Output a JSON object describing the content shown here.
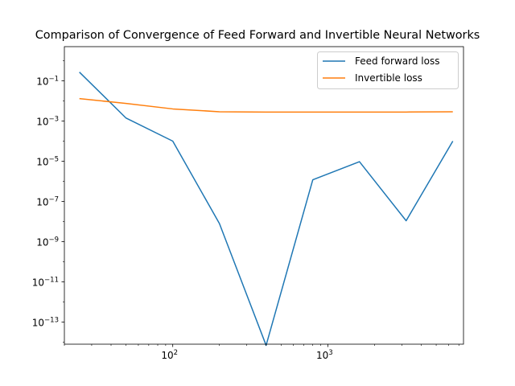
{
  "chart_data": {
    "type": "line",
    "title": "Comparison of Convergence of Feed Forward and Invertible Neural Networks",
    "xlabel": "",
    "ylabel": "",
    "xscale": "log",
    "yscale": "log",
    "xlim": [
      20,
      7500
    ],
    "ylim": [
      8e-15,
      5
    ],
    "xticks": [
      {
        "value": 100,
        "base": "10",
        "exp": "2"
      },
      {
        "value": 1000,
        "base": "10",
        "exp": "3"
      }
    ],
    "yticks": [
      {
        "value": 1e-13,
        "base": "10",
        "exp": "−13"
      },
      {
        "value": 1e-11,
        "base": "10",
        "exp": "−11"
      },
      {
        "value": 1e-09,
        "base": "10",
        "exp": "−9"
      },
      {
        "value": 1e-07,
        "base": "10",
        "exp": "−7"
      },
      {
        "value": 1e-05,
        "base": "10",
        "exp": "−5"
      },
      {
        "value": 0.001,
        "base": "10",
        "exp": "−3"
      },
      {
        "value": 0.1,
        "base": "10",
        "exp": "−1"
      }
    ],
    "x": [
      25,
      50,
      100,
      200,
      400,
      800,
      1600,
      3200,
      6400
    ],
    "series": [
      {
        "name": "Feed forward loss",
        "color": "#1f77b4",
        "values": [
          0.27,
          0.0014,
          0.0001,
          8e-09,
          7e-15,
          1.2e-06,
          9.5e-06,
          1.1e-08,
          0.0001
        ]
      },
      {
        "name": "Invertible loss",
        "color": "#ff7f0e",
        "values": [
          0.013,
          0.0075,
          0.004,
          0.0029,
          0.0028,
          0.0028,
          0.0028,
          0.0028,
          0.0029
        ]
      }
    ],
    "grid": false,
    "legend_position": "top-right"
  }
}
